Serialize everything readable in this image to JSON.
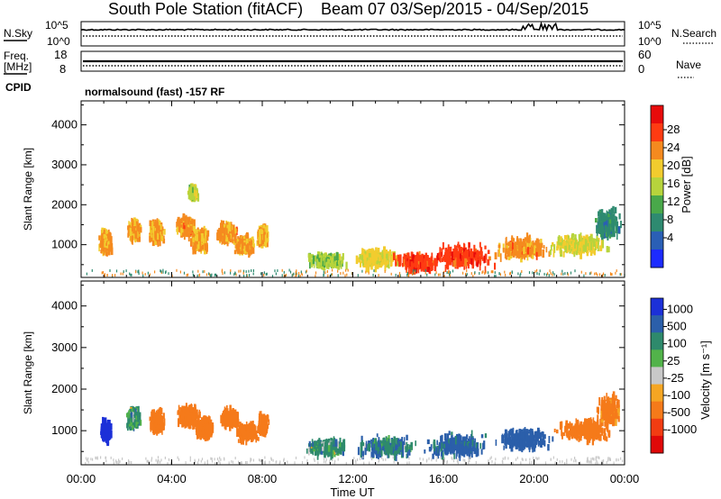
{
  "header": {
    "title": "South Pole Station (fitACF)",
    "beam": "Beam 07",
    "date_range": "03/Sep/2015 - 04/Sep/2015"
  },
  "params": {
    "nsky_label": "N.Sky",
    "nsky_top": "10^5",
    "nsky_bottom": "10^0",
    "nsearch_label": "N.Search",
    "nsearch_top": "10^5",
    "nsearch_bottom": "10^0",
    "freq_label": "Freq.",
    "freq_unit": "[MHz]",
    "freq_top": "18",
    "freq_bottom": "8",
    "nave_label": "Nave",
    "nave_top": "60",
    "nave_bottom": "0",
    "cpid_label": "CPID",
    "cpid_value": "normalsound (fast) -157 RF"
  },
  "axes": {
    "x_label": "Time UT",
    "x_ticks": [
      "00:00",
      "04:00",
      "08:00",
      "12:00",
      "16:00",
      "20:00",
      "00:00"
    ],
    "y_label": "Slant Range [km]",
    "y_ticks": [
      "1000",
      "2000",
      "3000",
      "4000"
    ]
  },
  "power_scale": {
    "label": "Power [dB]",
    "ticks": [
      "4",
      "8",
      "12",
      "16",
      "20",
      "24",
      "28"
    ],
    "colors": [
      "#1c2bff",
      "#2a5fb5",
      "#2e8a70",
      "#49a84a",
      "#b7d43c",
      "#f2cc2e",
      "#f58a1f",
      "#ff3b12",
      "#e80b0b"
    ]
  },
  "velocity_scale": {
    "label": "Velocity [m s⁻¹]",
    "ticks": [
      "1000",
      "500",
      "100",
      "25",
      "-25",
      "-100",
      "-500",
      "-1000"
    ],
    "colors": [
      "#1c30d8",
      "#2b5faa",
      "#2e8a6c",
      "#52b34a",
      "#c8c8c8",
      "#f5a623",
      "#f57a1a",
      "#f23c12",
      "#e00808"
    ]
  },
  "chart_data": [
    {
      "type": "heatmap",
      "name": "Power",
      "x_unit": "hours UT",
      "xlim": [
        0,
        24
      ],
      "ylim": [
        180,
        4600
      ],
      "value_unit": "dB",
      "clim": [
        0,
        32
      ],
      "blobs": [
        {
          "t": 1.05,
          "r": 1050,
          "dt": 0.35,
          "dr": 350,
          "v": 22
        },
        {
          "t": 2.3,
          "r": 1350,
          "dt": 0.35,
          "dr": 300,
          "v": 22
        },
        {
          "t": 3.3,
          "r": 1300,
          "dt": 0.4,
          "dr": 320,
          "v": 22
        },
        {
          "t": 4.6,
          "r": 1450,
          "dt": 0.5,
          "dr": 300,
          "v": 23
        },
        {
          "t": 5.2,
          "r": 1100,
          "dt": 0.5,
          "dr": 350,
          "v": 22
        },
        {
          "t": 6.4,
          "r": 1300,
          "dt": 0.5,
          "dr": 300,
          "v": 22
        },
        {
          "t": 7.2,
          "r": 1000,
          "dt": 0.6,
          "dr": 250,
          "v": 22
        },
        {
          "t": 8.0,
          "r": 1200,
          "dt": 0.3,
          "dr": 300,
          "v": 21
        },
        {
          "t": 4.9,
          "r": 2300,
          "dt": 0.25,
          "dr": 200,
          "v": 16
        },
        {
          "t": 10.8,
          "r": 600,
          "dt": 1.0,
          "dr": 220,
          "v": 15
        },
        {
          "t": 13.0,
          "r": 650,
          "dt": 1.2,
          "dr": 300,
          "v": 19
        },
        {
          "t": 14.8,
          "r": 550,
          "dt": 1.2,
          "dr": 280,
          "v": 27
        },
        {
          "t": 16.8,
          "r": 700,
          "dt": 1.6,
          "dr": 380,
          "v": 27
        },
        {
          "t": 19.4,
          "r": 900,
          "dt": 1.4,
          "dr": 330,
          "v": 23
        },
        {
          "t": 22.0,
          "r": 1000,
          "dt": 1.5,
          "dr": 300,
          "v": 18
        },
        {
          "t": 23.2,
          "r": 1500,
          "dt": 0.7,
          "dr": 400,
          "v": 9
        }
      ]
    },
    {
      "type": "heatmap",
      "name": "Velocity",
      "x_unit": "hours UT",
      "xlim": [
        0,
        24
      ],
      "ylim": [
        180,
        4600
      ],
      "value_unit": "m s^-1",
      "clim": [
        -1000,
        1000
      ],
      "blobs": [
        {
          "t": 1.05,
          "r": 1000,
          "dt": 0.3,
          "dr": 300,
          "v": 700
        },
        {
          "t": 2.3,
          "r": 1300,
          "dt": 0.35,
          "dr": 280,
          "v": 60
        },
        {
          "t": 3.3,
          "r": 1200,
          "dt": 0.4,
          "dr": 300,
          "v": -300
        },
        {
          "t": 4.7,
          "r": 1350,
          "dt": 0.6,
          "dr": 350,
          "v": -350
        },
        {
          "t": 5.4,
          "r": 1050,
          "dt": 0.5,
          "dr": 300,
          "v": -250
        },
        {
          "t": 6.5,
          "r": 1300,
          "dt": 0.5,
          "dr": 300,
          "v": -300
        },
        {
          "t": 7.3,
          "r": 950,
          "dt": 0.6,
          "dr": 250,
          "v": -200
        },
        {
          "t": 8.0,
          "r": 1150,
          "dt": 0.3,
          "dr": 280,
          "v": -250
        },
        {
          "t": 10.8,
          "r": 600,
          "dt": 1.0,
          "dr": 220,
          "v": 60
        },
        {
          "t": 13.5,
          "r": 600,
          "dt": 1.5,
          "dr": 300,
          "v": 90
        },
        {
          "t": 16.5,
          "r": 650,
          "dt": 1.6,
          "dr": 350,
          "v": 150
        },
        {
          "t": 19.5,
          "r": 800,
          "dt": 1.4,
          "dr": 330,
          "v": 300
        },
        {
          "t": 22.2,
          "r": 1000,
          "dt": 1.4,
          "dr": 330,
          "v": -200
        },
        {
          "t": 23.3,
          "r": 1500,
          "dt": 0.6,
          "dr": 400,
          "v": -150
        }
      ]
    }
  ]
}
